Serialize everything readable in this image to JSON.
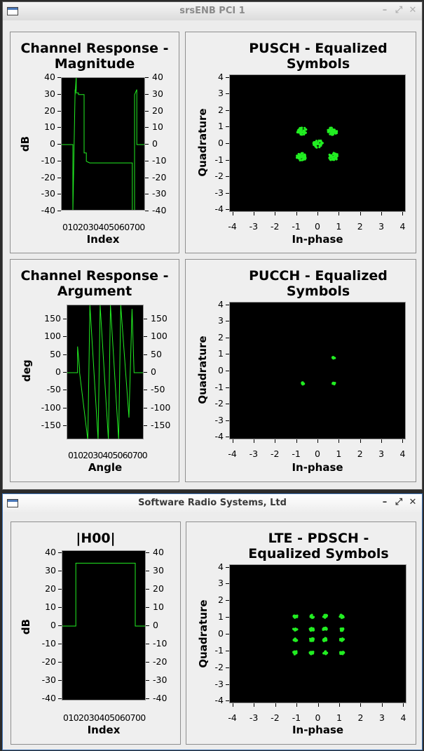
{
  "windows": [
    {
      "title": "srsENB PCI 1",
      "buttons": [
        "–",
        "⤢",
        "✕"
      ],
      "panels": [
        {
          "id": "p1",
          "title_lines": [
            "Channel Response -",
            "Magnitude"
          ],
          "xlabel": "Index",
          "ylabel": "dB",
          "yticks": [
            "40",
            "30",
            "20",
            "10",
            "0",
            "-10",
            "-20",
            "-30",
            "-40"
          ],
          "xticks_text": "0102030405060700"
        },
        {
          "id": "p2",
          "title_lines": [
            "PUSCH - Equalized",
            "Symbols"
          ],
          "xlabel": "In-phase",
          "ylabel": "Quadrature",
          "yticks": [
            "4",
            "3",
            "2",
            "1",
            "0",
            "-1",
            "-2",
            "-3",
            "-4"
          ],
          "xticks": [
            "-4",
            "-3",
            "-2",
            "-1",
            "0",
            "1",
            "2",
            "3",
            "4"
          ]
        },
        {
          "id": "p3",
          "title_lines": [
            "Channel Response -",
            "Argument"
          ],
          "xlabel": "Angle",
          "ylabel": "deg",
          "yticks": [
            "150",
            "100",
            "50",
            "0",
            "-50",
            "-100",
            "-150"
          ],
          "xticks_text": "0102030405060700"
        },
        {
          "id": "p4",
          "title_lines": [
            "PUCCH - Equalized",
            "Symbols"
          ],
          "xlabel": "In-phase",
          "ylabel": "Quadrature",
          "yticks": [
            "4",
            "3",
            "2",
            "1",
            "0",
            "-1",
            "-2",
            "-3",
            "-4"
          ],
          "xticks": [
            "-4",
            "-3",
            "-2",
            "-1",
            "0",
            "1",
            "2",
            "3",
            "4"
          ]
        }
      ]
    },
    {
      "title": "Software Radio Systems, Ltd",
      "buttons": [
        "–",
        "⤢",
        "✕"
      ],
      "panels": [
        {
          "id": "p5",
          "title_lines": [
            "|H00|"
          ],
          "xlabel": "Index",
          "ylabel": "dB",
          "yticks": [
            "40",
            "30",
            "20",
            "10",
            "0",
            "-10",
            "-20",
            "-30",
            "-40"
          ],
          "xticks_text": "0102030405060700"
        },
        {
          "id": "p6",
          "title_lines": [
            "LTE - PDSCH -",
            "Equalized Symbols"
          ],
          "xlabel": "In-phase",
          "ylabel": "Quadrature",
          "yticks": [
            "4",
            "3",
            "2",
            "1",
            "0",
            "-1",
            "-2",
            "-3",
            "-4"
          ],
          "xticks": [
            "-4",
            "-3",
            "-2",
            "-1",
            "0",
            "1",
            "2",
            "3",
            "4"
          ]
        }
      ]
    }
  ],
  "colors": {
    "trace": "#22ee22",
    "plot_bg": "#000000"
  },
  "chart_data": [
    {
      "type": "line",
      "title": "Channel Response - Magnitude",
      "xlabel": "Index",
      "ylabel": "dB",
      "ylim": [
        -40,
        40
      ],
      "xlim": [
        0,
        75
      ],
      "x": [
        0,
        10,
        10,
        12,
        12,
        13,
        13,
        15,
        15,
        20,
        20,
        22,
        22,
        25,
        25,
        63,
        63,
        65,
        65,
        67,
        67,
        75
      ],
      "y": [
        0,
        0,
        -40,
        33,
        30,
        41,
        31,
        31,
        30,
        30,
        -5,
        -5,
        -10,
        -11,
        -11,
        -11,
        -40,
        -40,
        30,
        33,
        0,
        0
      ]
    },
    {
      "type": "scatter",
      "title": "PUSCH - Equalized Symbols",
      "xlabel": "In-phase",
      "ylabel": "Quadrature",
      "xlim": [
        -4,
        4
      ],
      "ylim": [
        -4,
        4
      ],
      "clusters": [
        {
          "x": -0.75,
          "y": 0.75
        },
        {
          "x": 0.65,
          "y": 0.75
        },
        {
          "x": -0.75,
          "y": -0.75
        },
        {
          "x": 0.7,
          "y": -0.75
        },
        {
          "x": 0,
          "y": 0
        }
      ]
    },
    {
      "type": "line",
      "title": "Channel Response - Argument",
      "xlabel": "Angle",
      "ylabel": "deg",
      "ylim": [
        -180,
        180
      ],
      "xlim": [
        0,
        75
      ],
      "x": [
        0,
        10,
        10,
        12,
        12,
        20,
        22,
        30,
        32,
        40,
        42,
        50,
        52,
        60,
        63,
        65,
        65,
        75
      ],
      "y": [
        0,
        0,
        70,
        10,
        0,
        -180,
        180,
        -180,
        180,
        -180,
        180,
        -180,
        180,
        -120,
        170,
        0,
        0,
        0
      ]
    },
    {
      "type": "scatter",
      "title": "PUCCH - Equalized Symbols",
      "xlabel": "In-phase",
      "ylabel": "Quadrature",
      "xlim": [
        -4,
        4
      ],
      "ylim": [
        -4,
        4
      ],
      "clusters": [
        {
          "x": 0.7,
          "y": 0.8
        },
        {
          "x": 0.7,
          "y": -0.7
        },
        {
          "x": -0.7,
          "y": -0.7
        }
      ]
    },
    {
      "type": "line",
      "title": "|H00|",
      "xlabel": "Index",
      "ylabel": "dB",
      "ylim": [
        -40,
        40
      ],
      "xlim": [
        0,
        75
      ],
      "x": [
        0,
        12,
        12,
        65,
        65,
        75
      ],
      "y": [
        0,
        0,
        33.5,
        33.5,
        0,
        0
      ]
    },
    {
      "type": "scatter",
      "title": "LTE - PDSCH - Equalized Symbols",
      "xlabel": "In-phase",
      "ylabel": "Quadrature",
      "xlim": [
        -4,
        4
      ],
      "ylim": [
        -4,
        4
      ],
      "clusters": [
        {
          "x": -1.05,
          "y": 1.05
        },
        {
          "x": -0.3,
          "y": 1.05
        },
        {
          "x": 0.3,
          "y": 1.05
        },
        {
          "x": 1.05,
          "y": 1.05
        },
        {
          "x": -1.05,
          "y": 0.3
        },
        {
          "x": -0.3,
          "y": 0.3
        },
        {
          "x": 0.3,
          "y": 0.3
        },
        {
          "x": 1.05,
          "y": 0.3
        },
        {
          "x": -1.05,
          "y": -0.3
        },
        {
          "x": -0.3,
          "y": -0.3
        },
        {
          "x": 0.3,
          "y": -0.3
        },
        {
          "x": 1.05,
          "y": -0.3
        },
        {
          "x": -1.05,
          "y": -1.05
        },
        {
          "x": -0.3,
          "y": -1.05
        },
        {
          "x": 0.3,
          "y": -1.05
        },
        {
          "x": 1.05,
          "y": -1.05
        }
      ]
    }
  ]
}
